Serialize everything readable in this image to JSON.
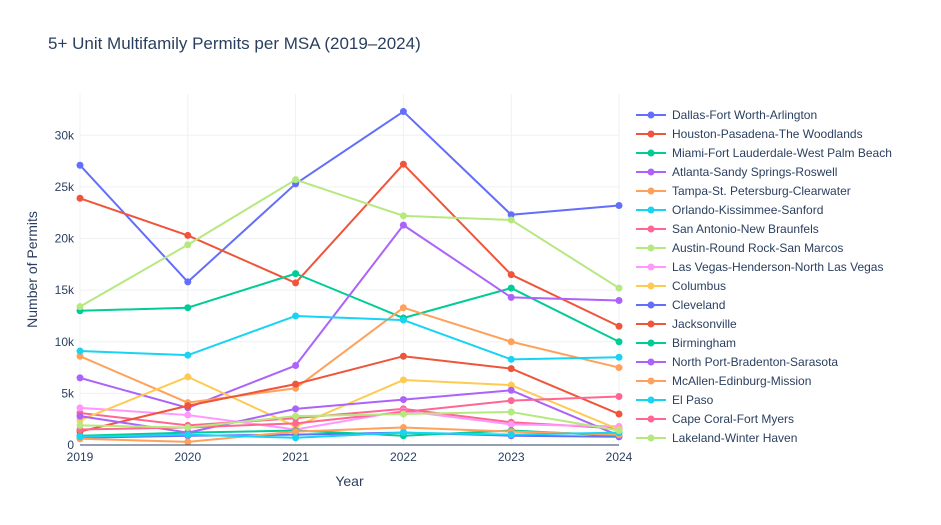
{
  "chart_data": {
    "type": "line",
    "title": "5+ Unit Multifamily Permits per MSA (2019–2024)",
    "xlabel": "Year",
    "ylabel": "Number of Permits",
    "x": [
      2019,
      2020,
      2021,
      2022,
      2023,
      2024
    ],
    "xlim": [
      2019,
      2024
    ],
    "ylim": [
      0,
      34000
    ],
    "yticks": [
      0,
      5000,
      10000,
      15000,
      20000,
      25000,
      30000
    ],
    "ytick_labels": [
      "0",
      "5k",
      "10k",
      "15k",
      "20k",
      "25k",
      "30k"
    ],
    "grid": true,
    "legend_position": "right",
    "series": [
      {
        "name": "Dallas-Fort Worth-Arlington",
        "color": "#636efa",
        "values": [
          27100,
          15800,
          25300,
          32300,
          22300,
          23200
        ]
      },
      {
        "name": "Houston-Pasadena-The Woodlands",
        "color": "#EF553B",
        "values": [
          23900,
          20300,
          15700,
          27200,
          16500,
          11500
        ]
      },
      {
        "name": "Miami-Fort Lauderdale-West Palm Beach",
        "color": "#00cc96",
        "values": [
          13000,
          13300,
          16600,
          12300,
          15200,
          10000
        ]
      },
      {
        "name": "Atlanta-Sandy Springs-Roswell",
        "color": "#ab63fa",
        "values": [
          6500,
          3600,
          7700,
          21300,
          14300,
          14000
        ]
      },
      {
        "name": "Tampa-St. Petersburg-Clearwater",
        "color": "#FFA15A",
        "values": [
          8600,
          4100,
          5500,
          13300,
          10000,
          7500
        ]
      },
      {
        "name": "Orlando-Kissimmee-Sanford",
        "color": "#19d3f3",
        "values": [
          9100,
          8700,
          12500,
          12100,
          8300,
          8500
        ]
      },
      {
        "name": "San Antonio-New Braunfels",
        "color": "#FF6692",
        "values": [
          3100,
          1900,
          2600,
          3500,
          2200,
          1600
        ]
      },
      {
        "name": "Austin-Round Rock-San Marcos",
        "color": "#B6E880",
        "values": [
          13400,
          19400,
          25700,
          22200,
          21800,
          15200
        ]
      },
      {
        "name": "Las Vegas-Henderson-North Las Vegas",
        "color": "#FF97FF",
        "values": [
          3600,
          2900,
          1500,
          3300,
          2000,
          1800
        ]
      },
      {
        "name": "Columbus",
        "color": "#FECB52",
        "values": [
          2400,
          6600,
          1800,
          6300,
          5800,
          1500
        ]
      },
      {
        "name": "Cleveland",
        "color": "#636efa",
        "values": [
          700,
          900,
          1000,
          1200,
          900,
          800
        ]
      },
      {
        "name": "Jacksonville",
        "color": "#EF553B",
        "values": [
          1300,
          3800,
          5900,
          8600,
          7400,
          3000
        ]
      },
      {
        "name": "Birmingham",
        "color": "#00cc96",
        "values": [
          900,
          1200,
          1400,
          900,
          1400,
          900
        ]
      },
      {
        "name": "North Port-Bradenton-Sarasota",
        "color": "#ab63fa",
        "values": [
          2800,
          1200,
          3500,
          4400,
          5300,
          900
        ]
      },
      {
        "name": "McAllen-Edinburg-Mission",
        "color": "#FFA15A",
        "values": [
          600,
          300,
          1300,
          1700,
          1300,
          1000
        ]
      },
      {
        "name": "El Paso",
        "color": "#19d3f3",
        "values": [
          800,
          1000,
          700,
          1200,
          1000,
          1200
        ]
      },
      {
        "name": "Cape Coral-Fort Myers",
        "color": "#FF6692",
        "values": [
          1500,
          1700,
          2100,
          3200,
          4300,
          4700
        ]
      },
      {
        "name": "Lakeland-Winter Haven",
        "color": "#B6E880",
        "values": [
          1900,
          1700,
          2800,
          3000,
          3200,
          1400
        ]
      }
    ]
  }
}
